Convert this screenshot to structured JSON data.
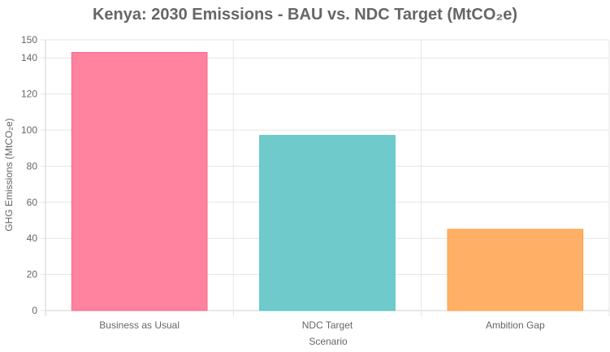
{
  "chart_data": {
    "type": "bar",
    "title": "Kenya: 2030 Emissions - BAU vs. NDC Target (MtCO₂e)",
    "xlabel": "Scenario",
    "ylabel": "GHG Emissions (MtCO₂e)",
    "categories": [
      "Business as Usual",
      "NDC Target",
      "Ambition Gap"
    ],
    "values": [
      143,
      97,
      45
    ],
    "colors": [
      "#ff829e",
      "#6fcbcb",
      "#ffb066"
    ],
    "border_colors": [
      "#ff6384",
      "#4bc0c0",
      "#ff9f40"
    ],
    "ylim": [
      0,
      150
    ],
    "yticks": [
      0,
      20,
      40,
      60,
      80,
      100,
      120,
      140,
      150
    ],
    "grid": true,
    "legend": "none"
  }
}
